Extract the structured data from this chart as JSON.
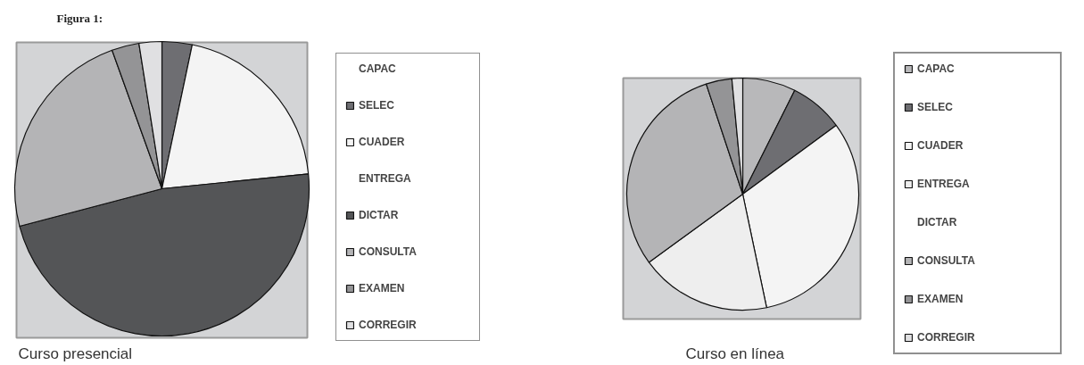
{
  "chart_data": [
    {
      "type": "pie",
      "title": "Figura 1:",
      "annotations": [
        "Curso presencial"
      ],
      "legend": "right",
      "categories": [
        "CAPAC",
        "SELEC",
        "CUADER",
        "ENTREGA",
        "DICTAR",
        "CONSULTA",
        "EXAMEN",
        "CORREGIR"
      ],
      "values": [
        0,
        3.3,
        20.1,
        0,
        47.5,
        23.6,
        3.0,
        2.5
      ],
      "colors": [
        "#b8b8ba",
        "#6e6e72",
        "#f4f4f4",
        "#eeeeee",
        "#545557",
        "#b4b4b6",
        "#949496",
        "#e0e0e2"
      ]
    },
    {
      "type": "pie",
      "annotations": [
        "Curso en línea"
      ],
      "legend": "right",
      "categories": [
        "CAPAC",
        "SELEC",
        "CUADER",
        "ENTREGA",
        "DICTAR",
        "CONSULTA",
        "EXAMEN",
        "CORREGIR"
      ],
      "values": [
        7.4,
        7.5,
        31.8,
        18.3,
        0,
        29.9,
        3.6,
        1.5
      ],
      "colors": [
        "#b8b8ba",
        "#6e6e72",
        "#f4f4f4",
        "#eeeeee",
        "#545557",
        "#b4b4b6",
        "#949496",
        "#e0e0e2"
      ]
    }
  ]
}
